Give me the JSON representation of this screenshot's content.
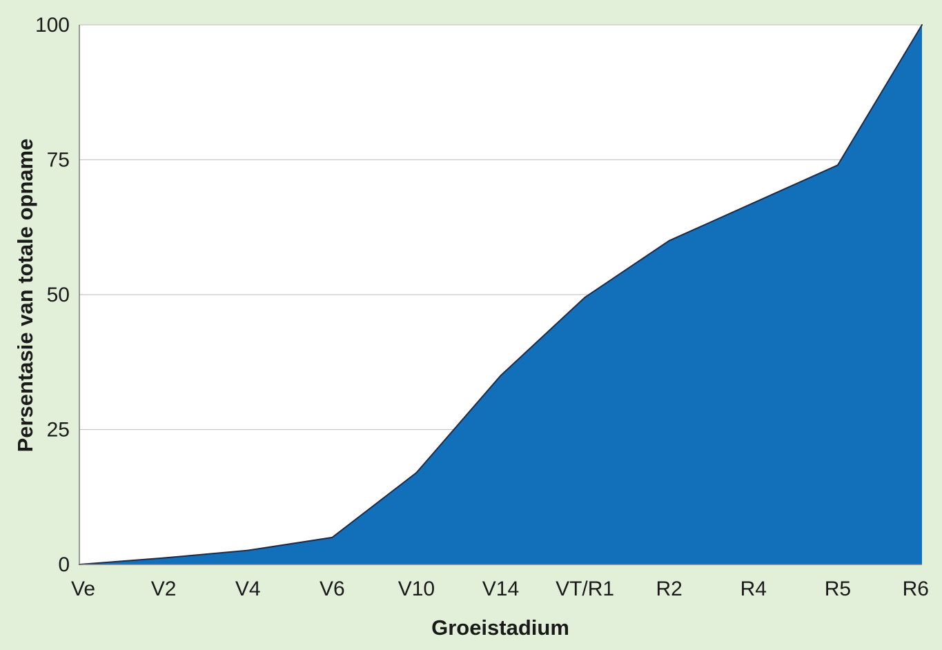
{
  "chart_data": {
    "type": "area",
    "title": "",
    "xlabel": "Groeistadium",
    "ylabel": "Persentasie van totale opname",
    "categories": [
      "Ve",
      "V2",
      "V4",
      "V6",
      "V10",
      "V14",
      "VT/R1",
      "R2",
      "R4",
      "R5",
      "R6"
    ],
    "values": [
      0,
      1.2,
      2.6,
      5,
      17,
      35,
      49.5,
      60,
      67,
      74,
      100
    ],
    "ylim": [
      0,
      100
    ],
    "yticks": [
      "0",
      "25",
      "50",
      "75",
      "100"
    ],
    "grid": true,
    "legend": "none",
    "colors": {
      "fill": "#1270ba",
      "outline": "#1f2a44",
      "background": "#e3f0d9",
      "plot_background": "#ffffff",
      "gridline": "#c8c8c8"
    }
  }
}
